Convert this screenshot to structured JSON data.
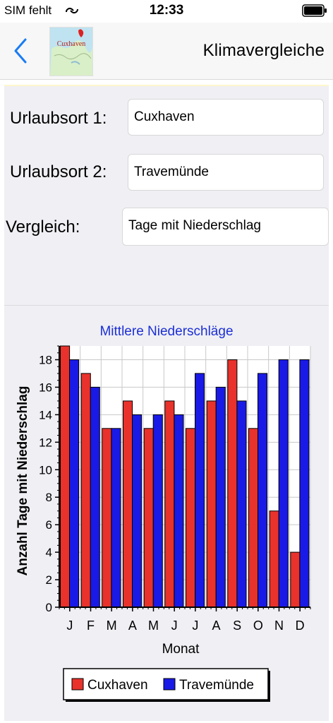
{
  "status": {
    "carrier": "SIM fehlt",
    "time": "12:33"
  },
  "nav": {
    "title": "Klimavergleiche",
    "logo_text": "Cuxhaven"
  },
  "form": {
    "location1_label": "Urlaubsort 1:",
    "location1_value": "Cuxhaven",
    "location2_label": "Urlaubsort 2:",
    "location2_value": "Travemünde",
    "compare_label": "Vergleich:",
    "compare_value": "Tage mit Niederschlag"
  },
  "colors": {
    "series1": "#e8322b",
    "series2": "#1a1ae6",
    "title": "#1c2fd6"
  },
  "chart_data": {
    "type": "bar",
    "title": "Mittlere Niederschläge",
    "xlabel": "Monat",
    "ylabel": "Anzahl Tage mit Niederschlag",
    "ylim": [
      0,
      19
    ],
    "yticks": [
      0,
      2,
      4,
      6,
      8,
      10,
      12,
      14,
      16,
      18
    ],
    "categories": [
      "J",
      "F",
      "M",
      "A",
      "M",
      "J",
      "J",
      "A",
      "S",
      "O",
      "N",
      "D"
    ],
    "series": [
      {
        "name": "Cuxhaven",
        "values": [
          19,
          17,
          13,
          15,
          13,
          15,
          13,
          15,
          18,
          13,
          7,
          4
        ]
      },
      {
        "name": "Travemünde",
        "values": [
          18,
          16,
          13,
          14,
          14,
          14,
          17,
          16,
          15,
          17,
          18,
          18
        ]
      }
    ],
    "grid": true,
    "legend": "bottom"
  }
}
